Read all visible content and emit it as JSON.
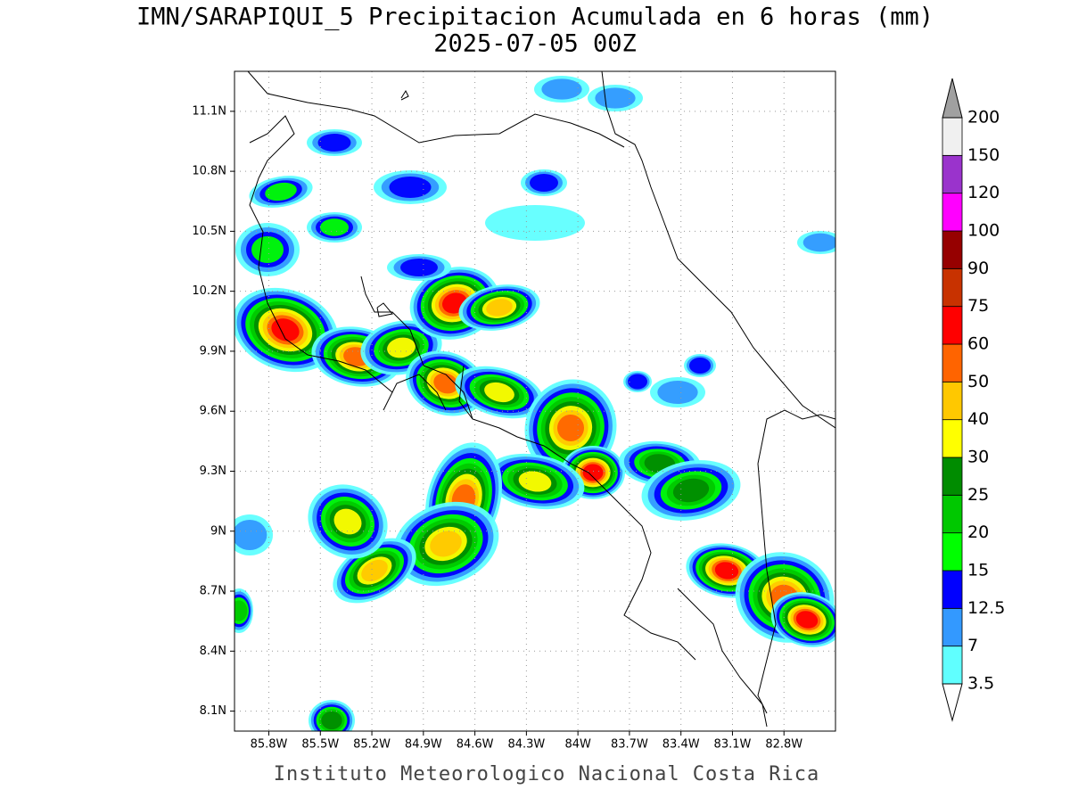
{
  "header": {
    "title": "IMN/SARAPIQUI_5 Precipitacion Acumulada en 6 horas (mm)",
    "subtitle": "2025-07-05 00Z"
  },
  "footer": "Instituto Meteorologico Nacional Costa Rica",
  "map": {
    "lon_range": [
      -86.0,
      -82.5
    ],
    "lat_range": [
      8.0,
      11.3
    ],
    "grid": true,
    "lat_ticks": [
      {
        "value": 8.1,
        "label": "8.1N"
      },
      {
        "value": 8.4,
        "label": "8.4N"
      },
      {
        "value": 8.7,
        "label": "8.7N"
      },
      {
        "value": 9.0,
        "label": "9N"
      },
      {
        "value": 9.3,
        "label": "9.3N"
      },
      {
        "value": 9.6,
        "label": "9.6N"
      },
      {
        "value": 9.9,
        "label": "9.9N"
      },
      {
        "value": 10.2,
        "label": "10.2N"
      },
      {
        "value": 10.5,
        "label": "10.5N"
      },
      {
        "value": 10.8,
        "label": "10.8N"
      },
      {
        "value": 11.1,
        "label": "11.1N"
      }
    ],
    "lon_ticks": [
      {
        "value": -85.8,
        "label": "85.8W"
      },
      {
        "value": -85.5,
        "label": "85.5W"
      },
      {
        "value": -85.2,
        "label": "85.2W"
      },
      {
        "value": -84.9,
        "label": "84.9W"
      },
      {
        "value": -84.6,
        "label": "84.6W"
      },
      {
        "value": -84.3,
        "label": "84.3W"
      },
      {
        "value": -84.0,
        "label": "84W"
      },
      {
        "value": -83.7,
        "label": "83.7W"
      },
      {
        "value": -83.4,
        "label": "83.4W"
      },
      {
        "value": -83.1,
        "label": "83.1W"
      },
      {
        "value": -82.8,
        "label": "82.8W"
      }
    ]
  },
  "colorbar": {
    "levels": [
      3.5,
      7,
      12.5,
      15,
      20,
      25,
      30,
      40,
      50,
      60,
      75,
      90,
      100,
      120,
      150,
      200
    ],
    "colors": [
      "#60ffff",
      "#3399ff",
      "#0000ff",
      "#00ff00",
      "#00c800",
      "#008c00",
      "#ffff00",
      "#ffc800",
      "#ff6400",
      "#ff0000",
      "#c83200",
      "#960000",
      "#ff00ff",
      "#9a33cc",
      "#f0f0f0"
    ],
    "over_color": "#a0a0a0",
    "under_color": "#ffffff"
  }
}
